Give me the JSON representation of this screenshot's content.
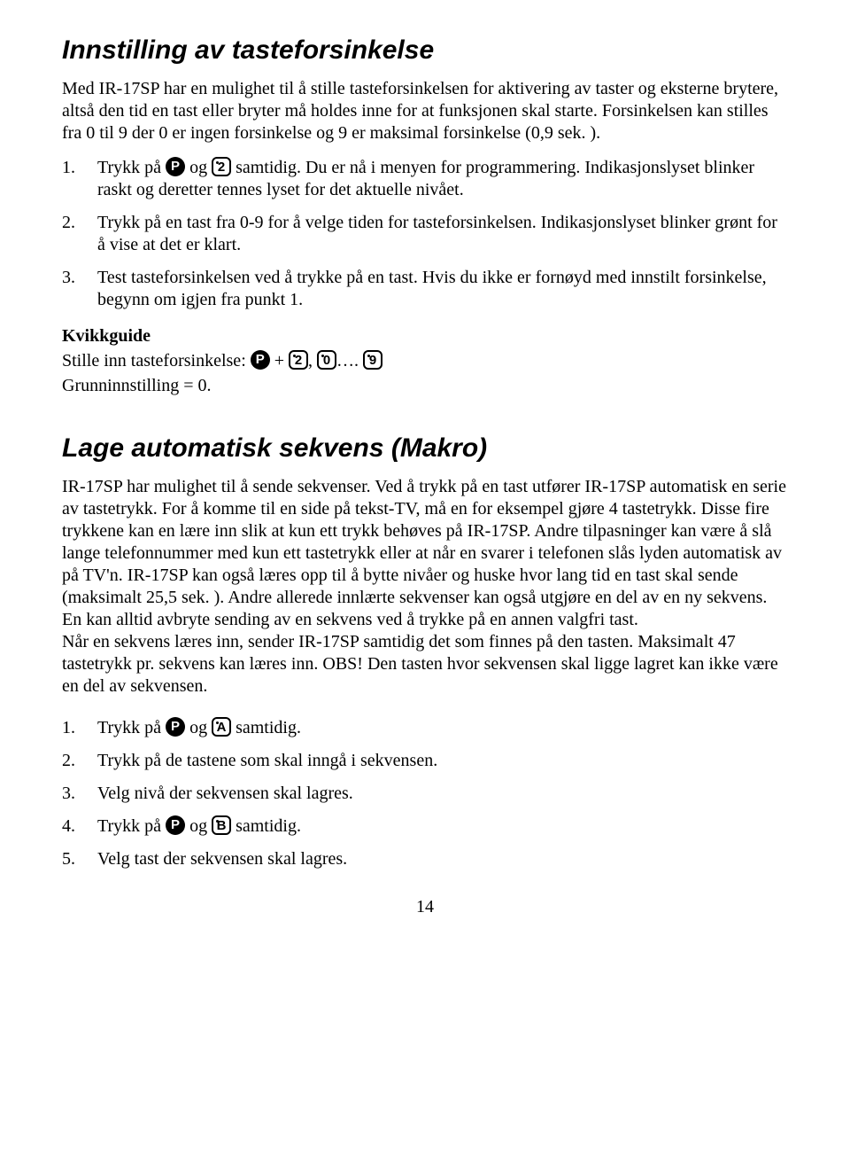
{
  "section1": {
    "heading": "Innstilling av tasteforsinkelse",
    "intro": "Med IR-17SP har en mulighet til å stille tasteforsinkelsen for aktivering av taster og eksterne brytere, altså den tid en tast eller bryter må holdes inne for at funksjonen skal starte. Forsinkelsen kan stilles fra 0 til 9 der 0 er ingen forsinkelse og 9 er maksimal forsinkelse (0,9 sek. ).",
    "li1a": "Trykk på ",
    "li1b": " og ",
    "li1c": " samtidig. Du er nå i menyen for programmering. Indikasjonslyset blinker raskt og deretter tennes lyset for det aktuelle nivået.",
    "li2": "Trykk på en tast fra 0-9 for å velge tiden for tasteforsinkelsen. Indikasjonslyset blinker grønt for å vise at det er klart.",
    "li3": "Test tasteforsinkelsen ved å trykke på en tast. Hvis du ikke er fornøyd med innstilt forsinkelse, begynn om igjen fra punkt 1.",
    "kvikk_label": "Kvikkguide",
    "kv1a": "Stille inn tasteforsinkelse: ",
    "kv1b": " + ",
    "kv1c": ", ",
    "kv1d": "…. ",
    "grunn": "Grunninnstilling = 0."
  },
  "section2": {
    "heading": "Lage automatisk sekvens (Makro)",
    "para": "IR-17SP har mulighet til å sende sekvenser. Ved å trykk på en tast utfører IR-17SP automatisk en serie av tastetrykk. For å komme til en side på tekst-TV, må en for eksempel gjøre 4 tastetrykk. Disse fire trykkene kan en lære inn slik at kun ett trykk behøves på IR-17SP. Andre tilpasninger kan være å slå lange telefonnummer med kun ett tastetrykk eller at når en svarer i telefonen slås lyden automatisk av på TV'n. IR-17SP kan også læres opp til å bytte nivåer og huske hvor lang tid  en tast skal sende (maksimalt 25,5 sek. ). Andre allerede innlærte sekvenser kan også utgjøre en del av en ny sekvens.\nEn kan alltid avbryte sending av en sekvens ved å trykke på en annen valgfri tast.\nNår en sekvens læres inn, sender IR-17SP samtidig det som finnes på den tasten. Maksimalt 47 tastetrykk pr. sekvens kan læres inn. OBS! Den tasten hvor sekvensen skal ligge lagret kan ikke være en del av sekvensen.",
    "li1a": "Trykk på ",
    "li1b": " og ",
    "li1c": " samtidig.",
    "li2": "Trykk på de tastene som skal inngå i sekvensen.",
    "li3": "Velg nivå der sekvensen skal lagres.",
    "li4a": "Trykk på ",
    "li4b": " og ",
    "li4c": " samtidig.",
    "li5": "Velg tast der sekvensen skal lagres."
  },
  "keys": {
    "P": "P",
    "2": "2",
    "0": "0",
    "9": "9",
    "A": "A",
    "B": "B"
  },
  "pagenum": "14"
}
